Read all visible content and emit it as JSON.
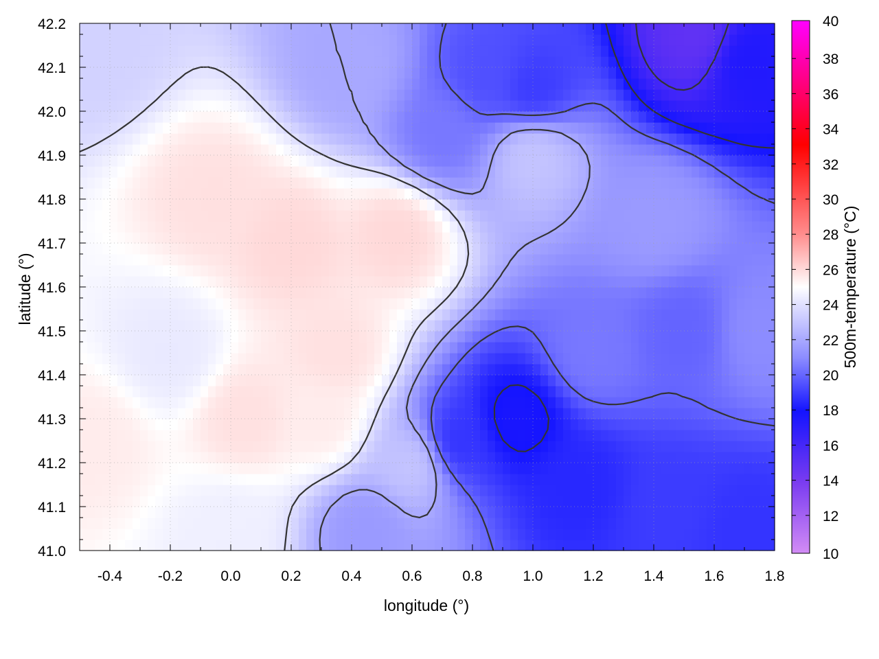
{
  "chart_data": {
    "type": "heatmap",
    "title": "",
    "xlabel": "longitude (°)",
    "ylabel": "latitude (°)",
    "colorbar_label": "500m-temperature (°C)",
    "xlim": [
      -0.5,
      1.8
    ],
    "ylim": [
      41.0,
      42.2
    ],
    "xticks": [
      "-0.4",
      "-0.2",
      "0.0",
      "0.2",
      "0.4",
      "0.6",
      "0.8",
      "1.0",
      "1.2",
      "1.4",
      "1.6",
      "1.8"
    ],
    "xtick_values": [
      -0.4,
      -0.2,
      0.0,
      0.2,
      0.4,
      0.6,
      0.8,
      1.0,
      1.2,
      1.4,
      1.6,
      1.8
    ],
    "yticks": [
      "41.0",
      "41.1",
      "41.2",
      "41.3",
      "41.4",
      "41.5",
      "41.6",
      "41.7",
      "41.8",
      "41.9",
      "42.0",
      "42.1",
      "42.2"
    ],
    "ytick_values": [
      41.0,
      41.1,
      41.2,
      41.3,
      41.4,
      41.5,
      41.6,
      41.7,
      41.8,
      41.9,
      42.0,
      42.1,
      42.2
    ],
    "clim": [
      10,
      40
    ],
    "cticks": [
      "10",
      "12",
      "14",
      "16",
      "18",
      "20",
      "22",
      "24",
      "26",
      "28",
      "30",
      "32",
      "34",
      "36",
      "38",
      "40"
    ],
    "ctick_values": [
      10,
      12,
      14,
      16,
      18,
      20,
      22,
      24,
      26,
      28,
      30,
      32,
      34,
      36,
      38,
      40
    ],
    "colormap": [
      {
        "value": 10,
        "color": "#d28cf5"
      },
      {
        "value": 14,
        "color": "#7a3cf0"
      },
      {
        "value": 18,
        "color": "#1414ff"
      },
      {
        "value": 21,
        "color": "#8c8cff"
      },
      {
        "value": 24,
        "color": "#e0e0ff"
      },
      {
        "value": 25,
        "color": "#ffffff"
      },
      {
        "value": 28,
        "color": "#ff8c8c"
      },
      {
        "value": 33,
        "color": "#ff0000"
      },
      {
        "value": 40,
        "color": "#ff00ff"
      }
    ],
    "grid": true,
    "contours": true,
    "field_features": [
      {
        "lon": -0.45,
        "lat": 42.15,
        "temperature": 23.5
      },
      {
        "lon": -0.05,
        "lat": 41.8,
        "temperature": 25.8
      },
      {
        "lon": 0.2,
        "lat": 41.7,
        "temperature": 26.0
      },
      {
        "lon": 0.55,
        "lat": 41.72,
        "temperature": 26.0
      },
      {
        "lon": -0.2,
        "lat": 41.45,
        "temperature": 24.3
      },
      {
        "lon": 0.05,
        "lat": 41.3,
        "temperature": 25.8
      },
      {
        "lon": 0.3,
        "lat": 41.3,
        "temperature": 25.5
      },
      {
        "lon": -0.45,
        "lat": 41.25,
        "temperature": 25.5
      },
      {
        "lon": 0.0,
        "lat": 41.05,
        "temperature": 24.5
      },
      {
        "lon": 0.35,
        "lat": 41.45,
        "temperature": 25.8
      },
      {
        "lon": 0.95,
        "lat": 41.3,
        "temperature": 17.8
      },
      {
        "lon": 0.75,
        "lat": 41.25,
        "temperature": 18.8
      },
      {
        "lon": 1.2,
        "lat": 41.45,
        "temperature": 20.5
      },
      {
        "lon": 1.5,
        "lat": 41.5,
        "temperature": 20.0
      },
      {
        "lon": 1.45,
        "lat": 41.1,
        "temperature": 19.0
      },
      {
        "lon": 1.7,
        "lat": 41.05,
        "temperature": 18.8
      },
      {
        "lon": 1.4,
        "lat": 41.75,
        "temperature": 21.5
      },
      {
        "lon": 1.0,
        "lat": 41.9,
        "temperature": 23.0
      },
      {
        "lon": 0.85,
        "lat": 42.08,
        "temperature": 19.5
      },
      {
        "lon": 1.0,
        "lat": 42.05,
        "temperature": 19.0
      },
      {
        "lon": 1.55,
        "lat": 42.17,
        "temperature": 15.0
      },
      {
        "lon": 1.7,
        "lat": 42.12,
        "temperature": 17.5
      },
      {
        "lon": 0.4,
        "lat": 42.1,
        "temperature": 22.0
      },
      {
        "lon": 0.7,
        "lat": 41.95,
        "temperature": 20.5
      },
      {
        "lon": 1.75,
        "lat": 41.5,
        "temperature": 21.0
      },
      {
        "lon": 0.6,
        "lat": 41.2,
        "temperature": 23.0
      },
      {
        "lon": 0.45,
        "lat": 41.05,
        "temperature": 21.5
      },
      {
        "lon": 1.15,
        "lat": 41.15,
        "temperature": 18.5
      }
    ]
  }
}
